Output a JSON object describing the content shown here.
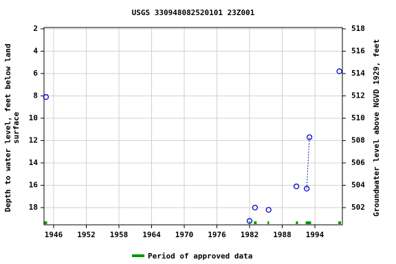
{
  "chart_data": {
    "type": "line",
    "title": "USGS 330948082520101 23Z001",
    "ylabel": [
      "Depth to water level, feet below land",
      "surface"
    ],
    "y2label": "Groundwater level above NGVD 1929, feet",
    "xlim": [
      1944.23,
      1999.05
    ],
    "xticks": [
      1946,
      1952,
      1958,
      1964,
      1970,
      1976,
      1982,
      1988,
      1994
    ],
    "ylim": [
      19.54,
      1.88
    ],
    "yticks": [
      2,
      4,
      6,
      8,
      10,
      12,
      14,
      16,
      18
    ],
    "y2lim": [
      500.46,
      518.12
    ],
    "y2ticks": [
      502,
      504,
      506,
      508,
      510,
      512,
      514,
      516,
      518
    ],
    "grid": true,
    "series": [
      {
        "color": "#0000cc",
        "x": [
          1944.6,
          null,
          1982.0,
          null,
          1983.0,
          null,
          1985.5,
          null,
          1990.6,
          null,
          1992.5,
          1993.0,
          null,
          1998.5
        ],
        "values": [
          8.1,
          null,
          19.2,
          null,
          18.0,
          null,
          18.2,
          null,
          16.1,
          null,
          16.3,
          11.7,
          null,
          5.8
        ]
      }
    ],
    "periods": {
      "name": "Period of approved data",
      "color": "#009900",
      "ranges": [
        [
          1944.3,
          1944.8
        ],
        [
          1981.9,
          1982.1
        ],
        [
          1982.8,
          1983.3
        ],
        [
          1985.3,
          1985.6
        ],
        [
          1990.5,
          1990.9
        ],
        [
          1992.3,
          1993.3
        ],
        [
          1998.3,
          1998.8
        ]
      ]
    }
  }
}
